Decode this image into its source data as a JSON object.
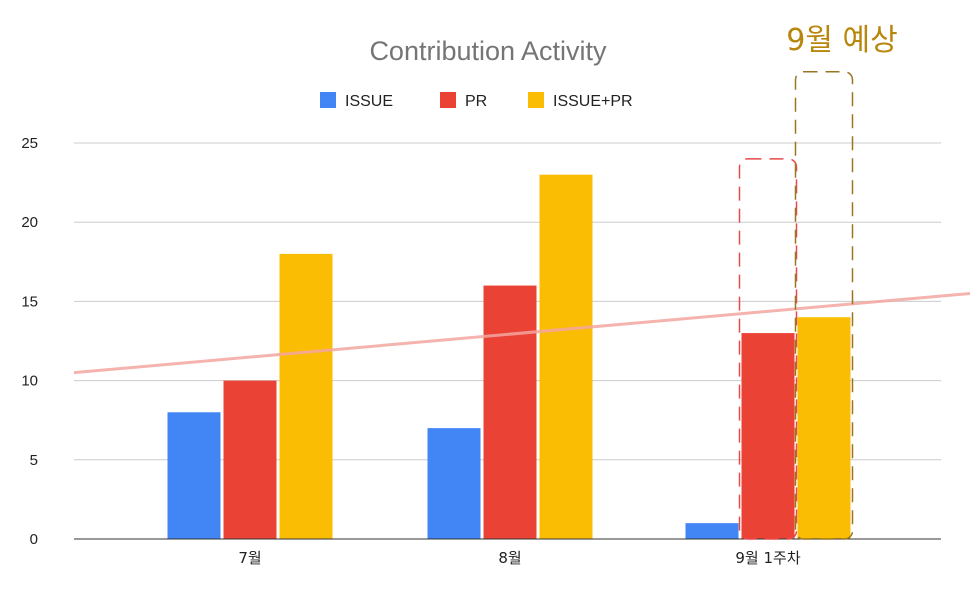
{
  "chart_data": {
    "type": "bar",
    "title": "Contribution Activity",
    "categories": [
      "7월",
      "8월",
      "9월 1주차"
    ],
    "series": [
      {
        "name": "ISSUE",
        "color": "#4285f4",
        "values": [
          8,
          7,
          1
        ]
      },
      {
        "name": "PR",
        "color": "#ea4335",
        "values": [
          10,
          16,
          13
        ]
      },
      {
        "name": "ISSUE+PR",
        "color": "#fbbc04",
        "values": [
          18,
          23,
          14
        ]
      }
    ],
    "ylim": [
      0,
      25
    ],
    "yticks": [
      0,
      5,
      10,
      15,
      20,
      25
    ],
    "grid": true,
    "legend_position": "top",
    "trendline": {
      "color": "#f4a6a0",
      "start_value": 10.5,
      "end_value": 15.5
    },
    "annotations": [
      {
        "text": "9월  예상",
        "color": "#b8860b"
      }
    ],
    "highlight_boxes": [
      {
        "category": "9월 1주차",
        "series": "PR",
        "color": "#e84a4a",
        "top_value": 24
      },
      {
        "category": "9월 1주차",
        "series": "ISSUE+PR",
        "color": "#9a7520",
        "top_value": 29.5
      }
    ]
  }
}
